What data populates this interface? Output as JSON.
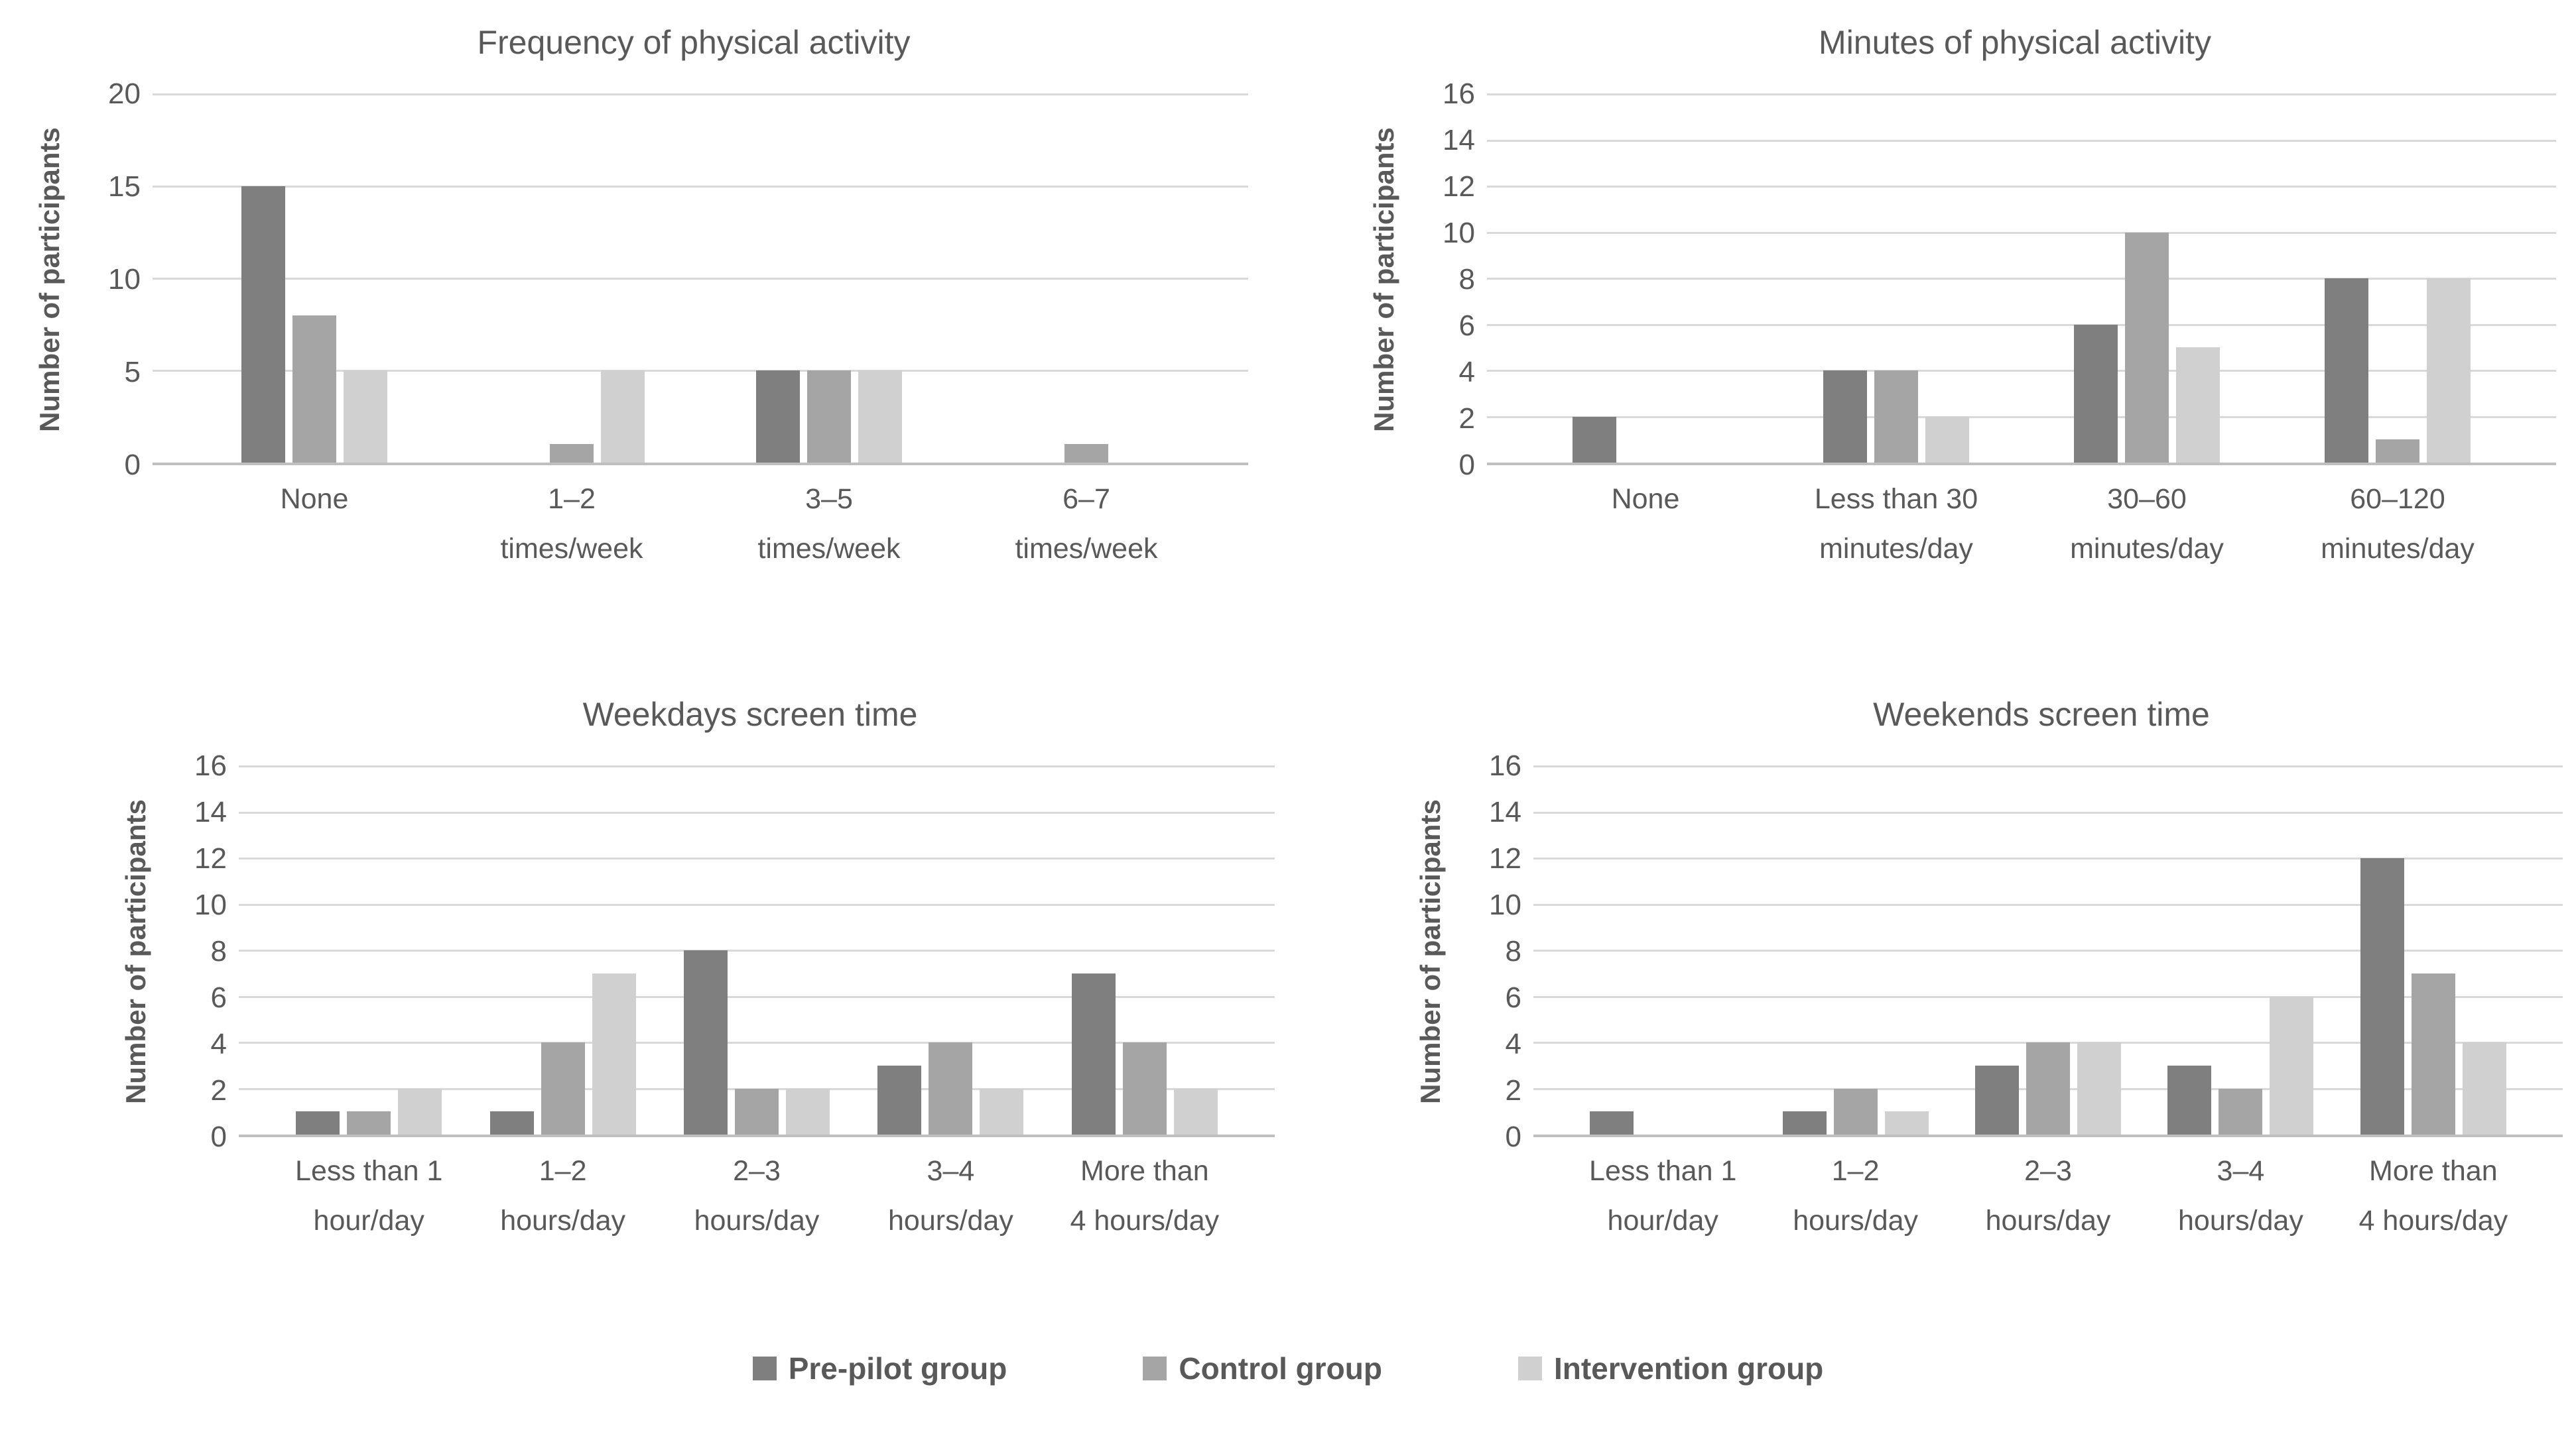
{
  "page": {
    "background": "#ffffff",
    "text_color": "#595959"
  },
  "colors": {
    "prepilot": "#7f7f7f",
    "control": "#a5a5a5",
    "intervention": "#d0d0d0",
    "gridline": "#d9d9d9",
    "axis_line": "#bfbfbf"
  },
  "legend": {
    "items": [
      {
        "label": "Pre-pilot group",
        "color": "#7f7f7f"
      },
      {
        "label": "Control group",
        "color": "#a5a5a5"
      },
      {
        "label": "Intervention group",
        "color": "#d0d0d0"
      }
    ]
  },
  "chart_data": [
    {
      "type": "bar",
      "title": "Frequency of physical activity",
      "ylabel": "Number of participants",
      "xlabel": "",
      "ylim": [
        0,
        20
      ],
      "ytick_step": 5,
      "grid": "horizontal",
      "legend_position": "shared-bottom",
      "categories": [
        "None",
        "1–2\ntimes/week",
        "3–5\ntimes/week",
        "6–7\ntimes/week"
      ],
      "series": [
        {
          "name": "Pre-pilot group",
          "key": "prepilot",
          "color": "#7f7f7f",
          "values": [
            15,
            0,
            5,
            0
          ]
        },
        {
          "name": "Control group",
          "key": "control",
          "color": "#a5a5a5",
          "values": [
            8,
            1,
            5,
            1
          ]
        },
        {
          "name": "Intervention group",
          "key": "intervention",
          "color": "#d0d0d0",
          "values": [
            5,
            5,
            5,
            0
          ]
        }
      ]
    },
    {
      "type": "bar",
      "title": "Minutes of physical activity",
      "ylabel": "Number of participants",
      "xlabel": "",
      "ylim": [
        0,
        16
      ],
      "ytick_step": 2,
      "grid": "horizontal",
      "legend_position": "shared-bottom",
      "categories": [
        "None",
        "Less than 30\nminutes/day",
        "30–60\nminutes/day",
        "60–120\nminutes/day"
      ],
      "series": [
        {
          "name": "Pre-pilot group",
          "key": "prepilot",
          "color": "#7f7f7f",
          "values": [
            2,
            4,
            6,
            8
          ]
        },
        {
          "name": "Control group",
          "key": "control",
          "color": "#a5a5a5",
          "values": [
            0,
            4,
            10,
            1
          ]
        },
        {
          "name": "Intervention group",
          "key": "intervention",
          "color": "#d0d0d0",
          "values": [
            0,
            2,
            5,
            8
          ]
        }
      ]
    },
    {
      "type": "bar",
      "title": "Weekdays screen time",
      "ylabel": "Number of participants",
      "xlabel": "",
      "ylim": [
        0,
        16
      ],
      "ytick_step": 2,
      "grid": "horizontal",
      "legend_position": "shared-bottom",
      "categories": [
        "Less than 1\nhour/day",
        "1–2\nhours/day",
        "2–3\nhours/day",
        "3–4\nhours/day",
        "More than\n4 hours/day"
      ],
      "series": [
        {
          "name": "Pre-pilot group",
          "key": "prepilot",
          "color": "#7f7f7f",
          "values": [
            1,
            1,
            8,
            3,
            7
          ]
        },
        {
          "name": "Control group",
          "key": "control",
          "color": "#a5a5a5",
          "values": [
            1,
            4,
            2,
            4,
            4
          ]
        },
        {
          "name": "Intervention group",
          "key": "intervention",
          "color": "#d0d0d0",
          "values": [
            2,
            7,
            2,
            2,
            2
          ]
        }
      ]
    },
    {
      "type": "bar",
      "title": "Weekends screen time",
      "ylabel": "Number of participants",
      "xlabel": "",
      "ylim": [
        0,
        16
      ],
      "ytick_step": 2,
      "grid": "horizontal",
      "legend_position": "shared-bottom",
      "categories": [
        "Less than 1\nhour/day",
        "1–2\nhours/day",
        "2–3\nhours/day",
        "3–4\nhours/day",
        "More than\n4 hours/day"
      ],
      "series": [
        {
          "name": "Pre-pilot group",
          "key": "prepilot",
          "color": "#7f7f7f",
          "values": [
            1,
            1,
            3,
            3,
            12
          ]
        },
        {
          "name": "Control group",
          "key": "control",
          "color": "#a5a5a5",
          "values": [
            0,
            2,
            4,
            2,
            7
          ]
        },
        {
          "name": "Intervention group",
          "key": "intervention",
          "color": "#d0d0d0",
          "values": [
            0,
            1,
            4,
            6,
            4
          ]
        }
      ]
    }
  ]
}
